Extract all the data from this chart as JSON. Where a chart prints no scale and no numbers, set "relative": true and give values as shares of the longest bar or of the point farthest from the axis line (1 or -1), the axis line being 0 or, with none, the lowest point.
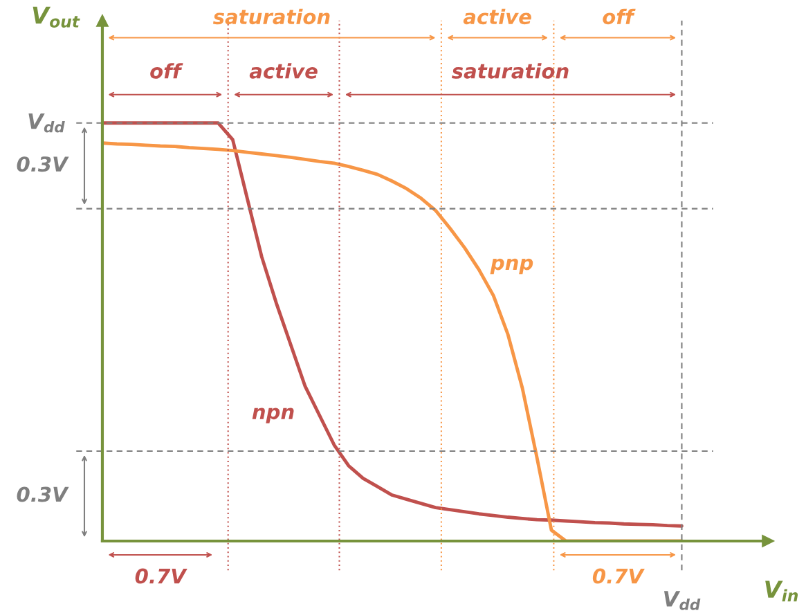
{
  "chart_data": {
    "type": "line",
    "relative": true,
    "xlabel": "V$_{in}$",
    "ylabel": "V$_{out}$",
    "categories": [
      null,
      null,
      null,
      null,
      null,
      null,
      null,
      null,
      null,
      null,
      null,
      null,
      null,
      null,
      null,
      null,
      null,
      null,
      null,
      null,
      null,
      null,
      null,
      null,
      null,
      null,
      null,
      null,
      null,
      null,
      null,
      null,
      null,
      null,
      null,
      null,
      null,
      null,
      null,
      null,
      null
    ],
    "series": [
      {
        "name": "npn",
        "color": "#c0504d",
        "values": [
          1,
          1,
          1,
          1,
          1,
          1,
          1,
          1,
          1,
          0.96,
          0.82,
          0.68,
          0.57,
          0.47,
          0.37,
          0.3,
          0.23,
          0.18,
          0.15,
          0.13,
          0.11,
          0.1,
          0.09,
          0.08,
          0.075,
          0.07,
          0.065,
          0.061,
          0.057,
          0.054,
          0.051,
          0.05,
          0.048,
          0.046,
          0.044,
          0.043,
          0.041,
          0.04,
          0.039,
          0.037,
          0.036
        ]
      },
      {
        "name": "pnp",
        "color": "#f79646",
        "values": [
          0.952,
          0.95,
          0.949,
          0.947,
          0.945,
          0.944,
          0.941,
          0.939,
          0.937,
          0.934,
          0.93,
          0.926,
          0.922,
          0.918,
          0.913,
          0.908,
          0.904,
          0.896,
          0.887,
          0.877,
          0.861,
          0.843,
          0.82,
          0.791,
          0.748,
          0.702,
          0.649,
          0.587,
          0.494,
          0.365,
          0.2,
          0.026,
          0,
          0,
          0,
          0,
          0,
          0,
          0,
          0,
          0
        ]
      }
    ],
    "ref_lines": [
      {
        "axis": "y",
        "value": 1,
        "label": "V$_{dd}$",
        "color": "#7f7f7f",
        "line_style": "dashed"
      },
      {
        "axis": "y",
        "value": 0.795,
        "color": "#7f7f7f",
        "line_style": "dashed"
      },
      {
        "axis": "y",
        "value": 0.215,
        "color": "#7f7f7f",
        "line_style": "dashed"
      }
    ],
    "annotations": [
      "saturation",
      "active",
      "off",
      "off",
      "active",
      "saturation",
      "0.7V",
      "0.7V",
      "0.3V",
      "0.3V",
      "V$_{dd}$"
    ]
  }
}
